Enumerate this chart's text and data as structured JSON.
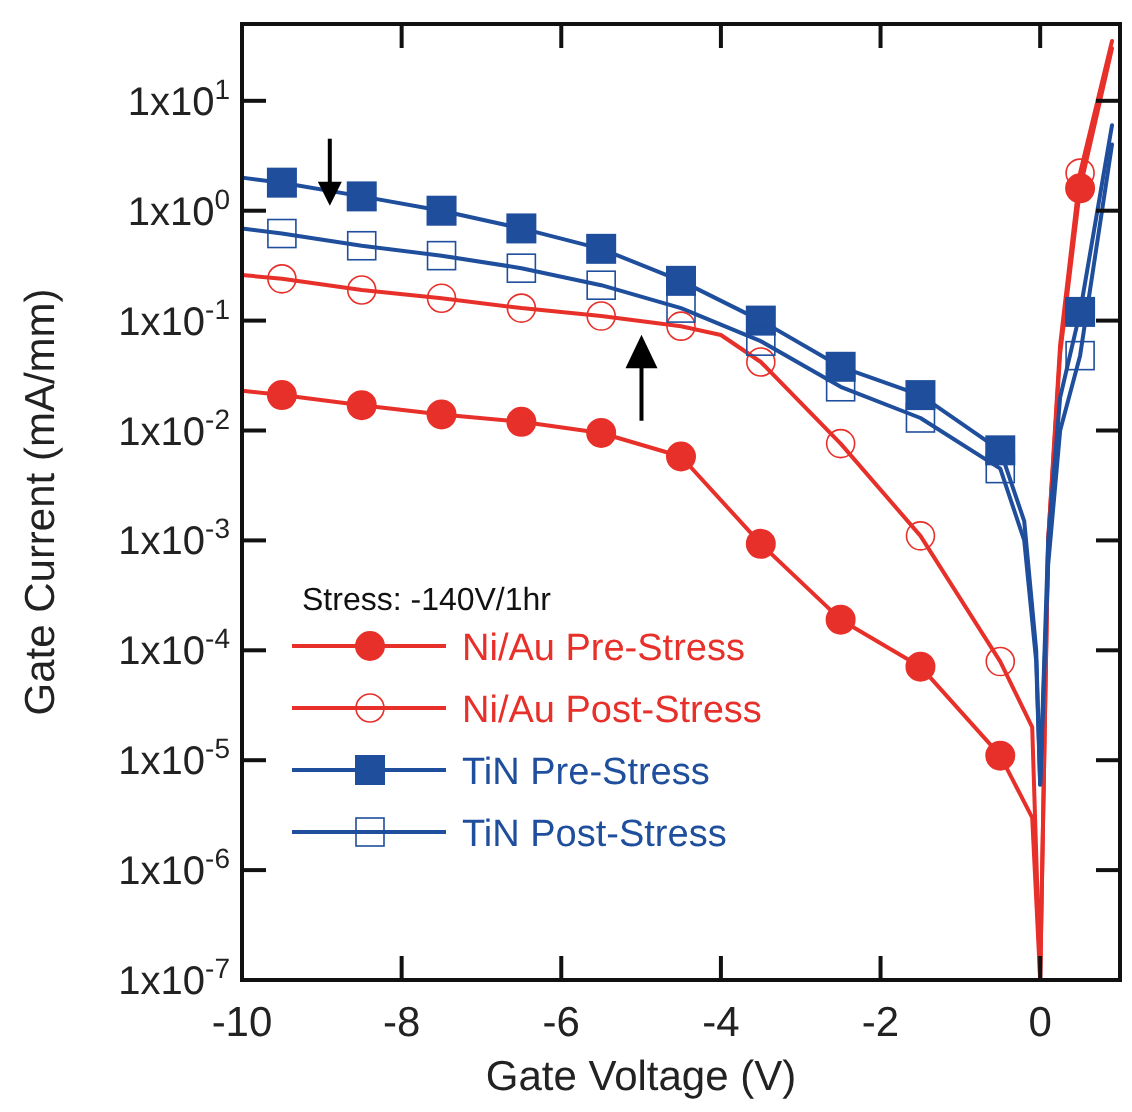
{
  "chart_data": {
    "type": "line",
    "xlabel": "Gate Voltage (V)",
    "ylabel": "Gate Current (mA/mm)",
    "legend_title": "Stress: -140V/1hr",
    "log": "y",
    "legend": "bottom left",
    "grid": false,
    "xlim": [
      -10,
      1
    ],
    "xticks": [
      -10,
      -8,
      -6,
      -4,
      -2,
      0
    ],
    "ylim": [
      1e-07,
      50
    ],
    "yticks": [
      {
        "value": 1e-07,
        "label": "1x10$^{-7}$"
      },
      {
        "value": 1e-06,
        "label": "1x10$^{-6}$"
      },
      {
        "value": 1e-05,
        "label": "1x10$^{-5}$"
      },
      {
        "value": 0.0001,
        "label": "1x10$^{-4}$"
      },
      {
        "value": 0.001,
        "label": "1x10$^{-3}$"
      },
      {
        "value": 0.01,
        "label": "1x10$^{-2}$"
      },
      {
        "value": 0.1,
        "label": "1x10$^{-1}$"
      },
      {
        "value": 1,
        "label": "1x10$^{0}$"
      },
      {
        "value": 10,
        "label": "1x10$^{1}$"
      }
    ],
    "series": [
      {
        "type": "line",
        "color": "#e8302a",
        "marker": "none",
        "x": [
          -10,
          -9.5,
          -8.5,
          -7.5,
          -6.5,
          -5.5,
          -4.5,
          -3.5,
          -2.5,
          -1.5,
          -0.5,
          -0.1,
          0,
          0.1,
          0.25,
          0.5,
          0.9
        ],
        "values": [
          0.023,
          0.021,
          0.017,
          0.014,
          0.012,
          0.0095,
          0.0058,
          0.00093,
          0.00019,
          7.1e-05,
          1.1e-05,
          3e-06,
          1e-07,
          0.001,
          0.05,
          1.6,
          30
        ]
      },
      {
        "type": "line",
        "color": "#e8302a",
        "marker": "none",
        "x": [
          -10,
          -9.5,
          -8.5,
          -7.5,
          -6.5,
          -5.5,
          -4.5,
          -4,
          -3.5,
          -2.5,
          -1.5,
          -0.5,
          -0.1,
          0,
          0.1,
          0.25,
          0.5,
          0.9
        ],
        "values": [
          0.26,
          0.24,
          0.19,
          0.16,
          0.13,
          0.11,
          0.089,
          0.074,
          0.042,
          0.0076,
          0.0011,
          7.9e-05,
          2e-05,
          1e-07,
          0.001,
          0.06,
          2.2,
          35
        ]
      },
      {
        "type": "line",
        "color": "#1f4e9c",
        "marker": "none",
        "x": [
          -10,
          -9.5,
          -8.5,
          -7.5,
          -6.5,
          -5.5,
          -4.5,
          -3.5,
          -2.5,
          -1.5,
          -0.5,
          -0.2,
          -0.05,
          0,
          0.1,
          0.25,
          0.5,
          0.9
        ],
        "values": [
          2.0,
          1.8,
          1.35,
          1.0,
          0.69,
          0.45,
          0.23,
          0.1,
          0.038,
          0.021,
          0.0066,
          0.0015,
          0.0001,
          6e-06,
          0.001,
          0.02,
          0.12,
          6
        ]
      },
      {
        "type": "line",
        "color": "#1f4e9c",
        "marker": "none",
        "x": [
          -10,
          -9.5,
          -8.5,
          -7.5,
          -6.5,
          -5.5,
          -4.5,
          -3.5,
          -2.5,
          -1.5,
          -0.5,
          -0.2,
          -0.05,
          0,
          0.1,
          0.25,
          0.5,
          0.9
        ],
        "values": [
          0.69,
          0.62,
          0.48,
          0.39,
          0.3,
          0.21,
          0.13,
          0.065,
          0.025,
          0.013,
          0.0045,
          0.001,
          8e-05,
          6e-06,
          0.0006,
          0.01,
          0.048,
          4
        ]
      },
      {
        "type": "scatter",
        "name": "Ni/Au Pre-Stress",
        "color": "#e8302a",
        "marker": "circle",
        "x": [
          -9.5,
          -8.5,
          -7.5,
          -6.5,
          -5.5,
          -4.5,
          -3.5,
          -2.5,
          -1.5,
          -0.5,
          0.5
        ],
        "values": [
          0.021,
          0.017,
          0.014,
          0.012,
          0.0095,
          0.0058,
          0.00093,
          0.00019,
          7.1e-05,
          1.1e-05,
          1.6
        ]
      },
      {
        "type": "scatter",
        "name": "Ni/Au Post-Stress",
        "color": "#e8302a",
        "marker": "circle",
        "x": [
          -9.5,
          -8.5,
          -7.5,
          -6.5,
          -5.5,
          -4.5,
          -3.5,
          -2.5,
          -1.5,
          -0.5,
          0.5
        ],
        "values": [
          0.24,
          0.19,
          0.16,
          0.13,
          0.11,
          0.089,
          0.042,
          0.0076,
          0.0011,
          7.9e-05,
          2.2
        ]
      },
      {
        "type": "scatter",
        "name": "TiN Pre-Stress",
        "color": "#1f4e9c",
        "marker": "square",
        "x": [
          -9.5,
          -8.5,
          -7.5,
          -6.5,
          -5.5,
          -4.5,
          -3.5,
          -2.5,
          -1.5,
          -0.5,
          0.5
        ],
        "values": [
          1.8,
          1.35,
          1.0,
          0.69,
          0.45,
          0.23,
          0.1,
          0.038,
          0.021,
          0.0066,
          0.12
        ]
      },
      {
        "type": "scatter",
        "name": "TiN Post-Stress",
        "color": "#1f4e9c",
        "marker": "square",
        "x": [
          -9.5,
          -8.5,
          -7.5,
          -6.5,
          -5.5,
          -4.5,
          -3.5,
          -2.5,
          -1.5,
          -0.5,
          0.5
        ],
        "values": [
          0.62,
          0.48,
          0.39,
          0.3,
          0.21,
          0.13,
          0.065,
          0.025,
          0.013,
          0.0045,
          0.048
        ]
      }
    ]
  }
}
